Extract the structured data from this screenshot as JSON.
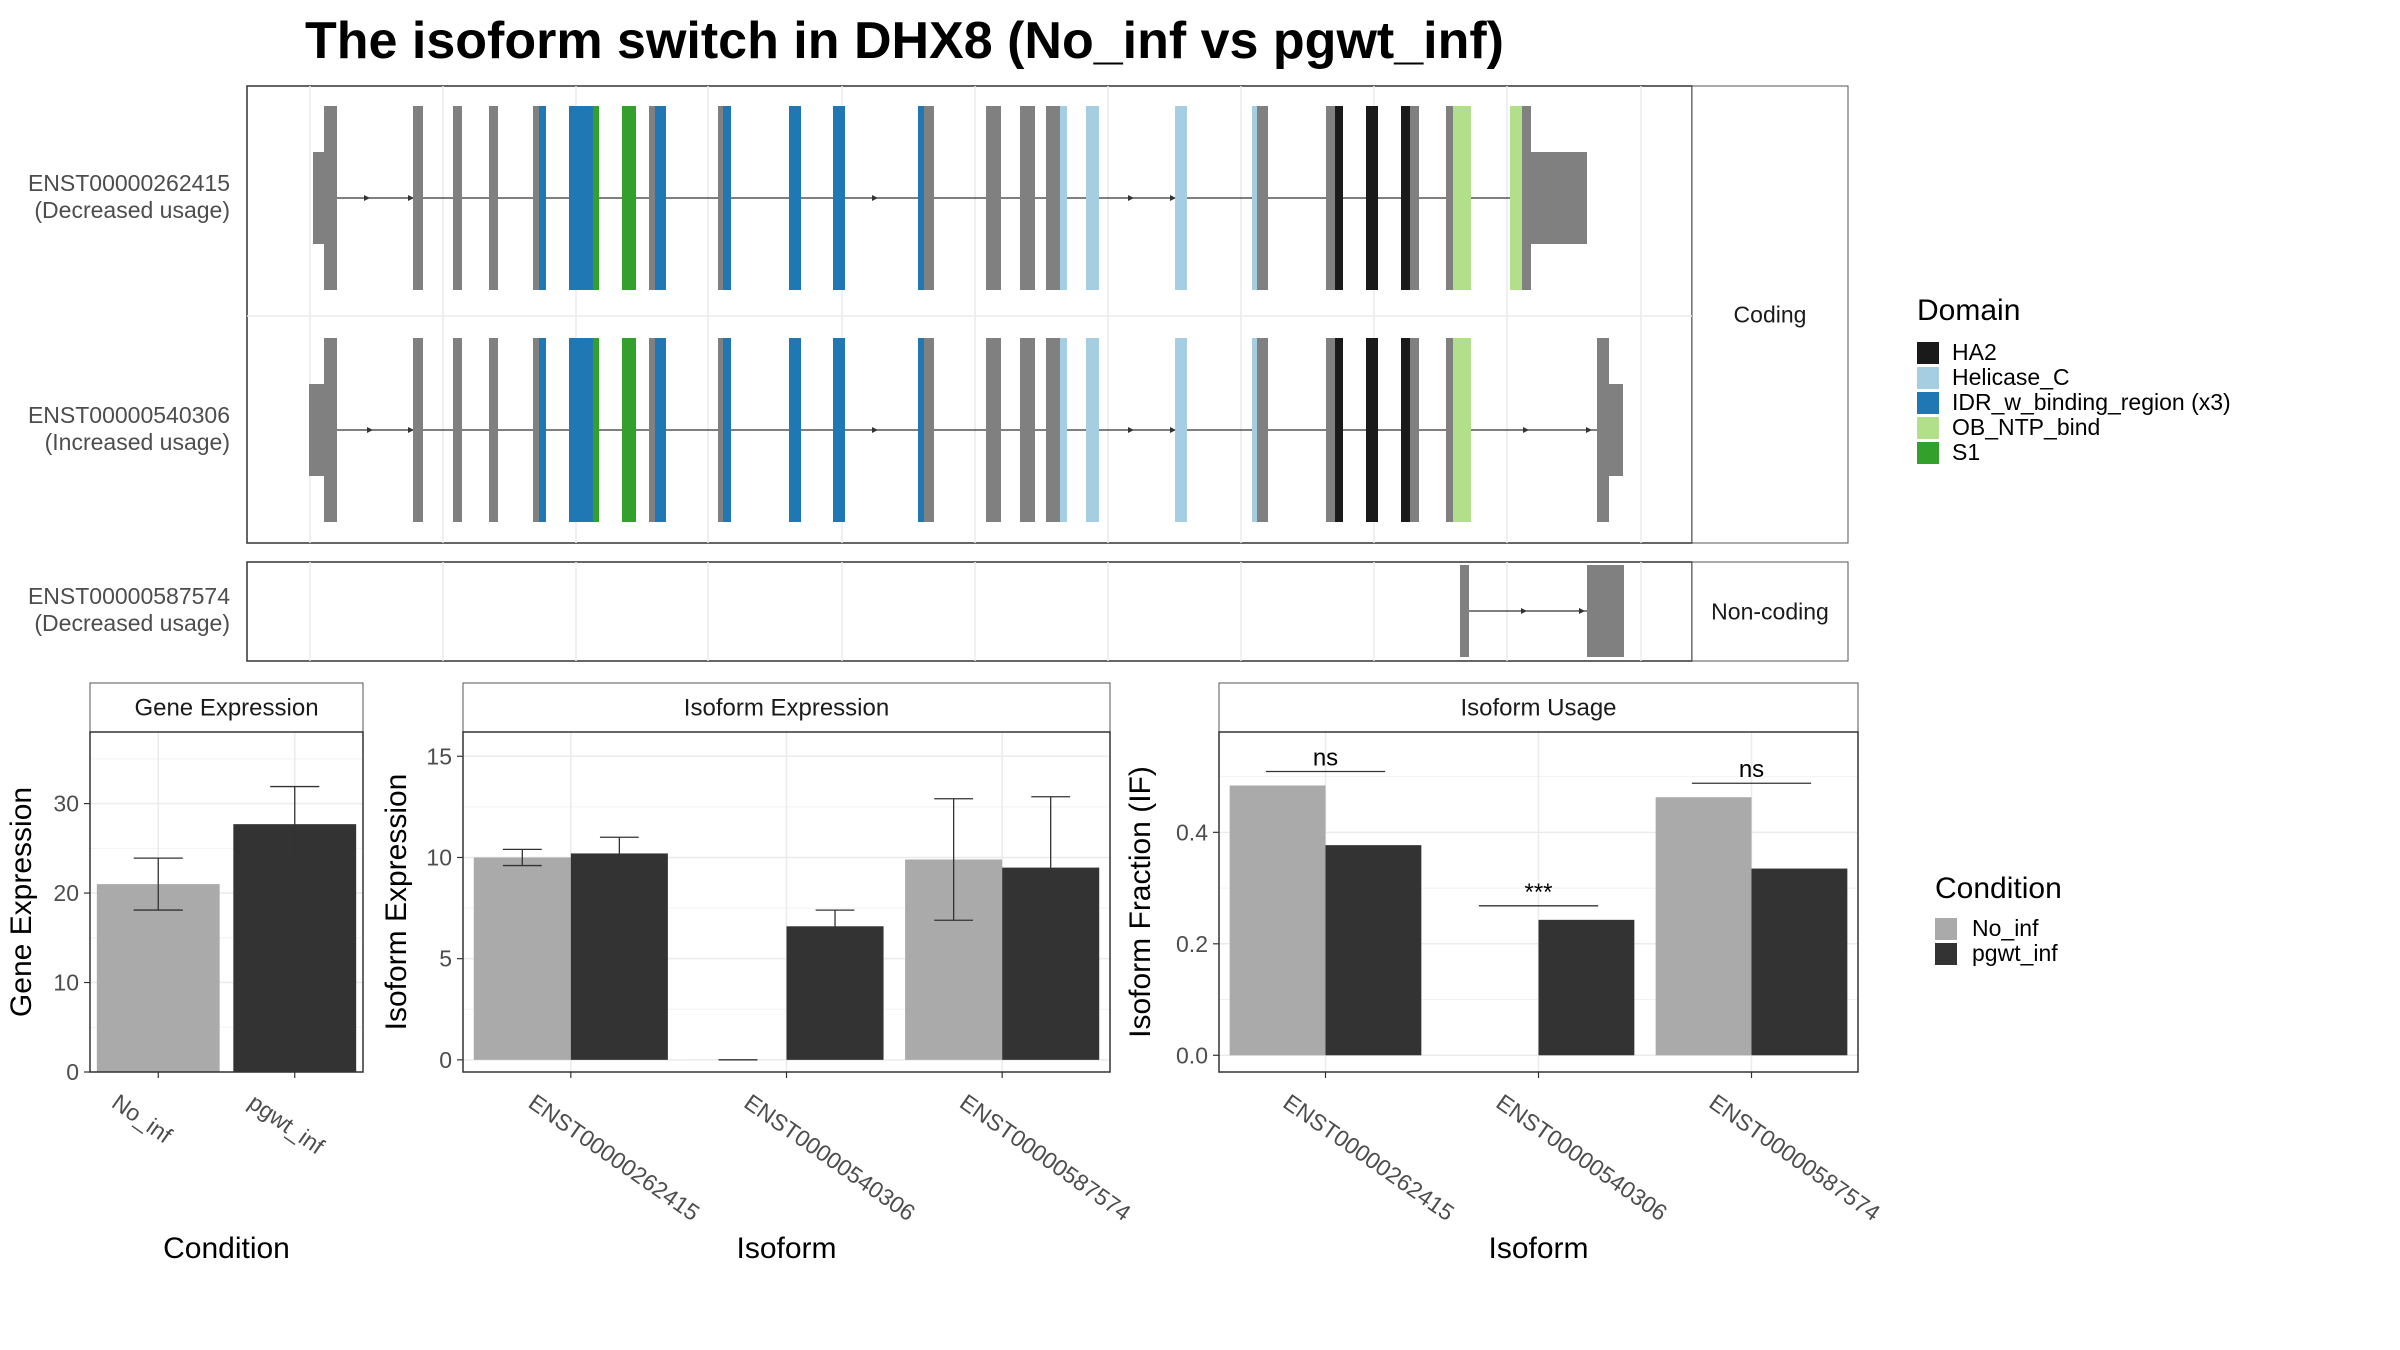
{
  "title": "The isoform switch in DHX8 (No_inf vs pgwt_inf)",
  "colors": {
    "exon": "#808080",
    "HA2": "#1a1a1a",
    "Helicase_C": "#a6cee3",
    "IDR_w_binding_region (x3)": "#1f78b4",
    "OB_NTP_bind": "#b2df8a",
    "S1": "#33a02c",
    "No_inf": "#aaaaaa",
    "pgwt_inf": "#333333"
  },
  "structure": {
    "facets": [
      "Coding",
      "Non-coding"
    ],
    "transcripts": [
      {
        "id": "ENST00000262415",
        "usage": "(Decreased usage)",
        "facet": "Coding"
      },
      {
        "id": "ENST00000540306",
        "usage": "(Increased usage)",
        "facet": "Coding"
      },
      {
        "id": "ENST00000587574",
        "usage": "(Decreased usage)",
        "facet": "Non-coding"
      }
    ],
    "domain_legend": {
      "title": "Domain",
      "items": [
        "HA2",
        "Helicase_C",
        "IDR_w_binding_region (x3)",
        "OB_NTP_bind",
        "S1"
      ]
    }
  },
  "chart_data": [
    {
      "type": "bar",
      "panel": "Gene Expression",
      "categories": [
        "No_inf",
        "pgwt_inf"
      ],
      "values": [
        21.0,
        27.7
      ],
      "error": [
        [
          18.1,
          23.9
        ],
        [
          23.5,
          31.9
        ]
      ],
      "xlabel": "Condition",
      "ylabel": "Gene Expression",
      "ylim": [
        0,
        38
      ],
      "yticks": [
        0,
        10,
        20,
        30
      ],
      "grid": true
    },
    {
      "type": "bar",
      "panel": "Isoform Expression",
      "categories": [
        "ENST00000262415",
        "ENST00000540306",
        "ENST00000587574"
      ],
      "series": [
        {
          "name": "No_inf",
          "values": [
            10.0,
            0.0,
            9.9
          ],
          "error": [
            [
              9.6,
              10.4
            ],
            [
              0,
              0
            ],
            [
              6.9,
              12.9
            ]
          ]
        },
        {
          "name": "pgwt_inf",
          "values": [
            10.2,
            6.6,
            9.5
          ],
          "error": [
            [
              9.4,
              11.0
            ],
            [
              5.8,
              7.4
            ],
            [
              6.0,
              13.0
            ]
          ]
        }
      ],
      "xlabel": "Isoform",
      "ylabel": "Isoform Expression",
      "ylim": [
        -0.6,
        16.2
      ],
      "yticks": [
        0,
        5,
        10,
        15
      ],
      "grid": true
    },
    {
      "type": "bar",
      "panel": "Isoform Usage",
      "categories": [
        "ENST00000262415",
        "ENST00000540306",
        "ENST00000587574"
      ],
      "series": [
        {
          "name": "No_inf",
          "values": [
            0.484,
            0.0,
            0.463
          ]
        },
        {
          "name": "pgwt_inf",
          "values": [
            0.377,
            0.243,
            0.335
          ]
        }
      ],
      "significance": [
        "ns",
        "***",
        "ns"
      ],
      "xlabel": "Isoform",
      "ylabel": "Isoform Fraction (IF)",
      "ylim": [
        -0.03,
        0.58
      ],
      "yticks": [
        0.0,
        0.2,
        0.4
      ],
      "ytick_labels": [
        "0.0",
        "0.2",
        "0.4"
      ],
      "grid": true
    }
  ],
  "condition_legend": {
    "title": "Condition",
    "items": [
      "No_inf",
      "pgwt_inf"
    ]
  }
}
